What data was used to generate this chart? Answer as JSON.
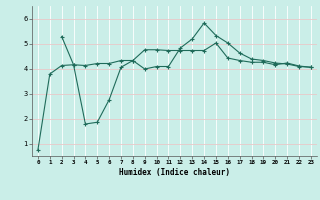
{
  "line1_x": [
    2,
    3,
    4,
    5,
    6,
    7,
    8,
    9,
    10,
    11,
    12,
    13,
    14,
    15,
    16,
    17,
    18,
    19,
    20,
    21,
    22,
    23
  ],
  "line1_y": [
    5.28,
    4.15,
    4.12,
    4.2,
    4.2,
    4.32,
    4.32,
    4.75,
    4.75,
    4.72,
    4.72,
    4.72,
    4.72,
    5.02,
    4.42,
    4.32,
    4.25,
    4.25,
    4.15,
    4.22,
    4.1,
    4.05
  ],
  "line2_x": [
    0,
    1,
    2,
    3,
    4,
    5,
    6,
    7,
    8,
    9,
    10,
    11,
    12,
    13,
    14,
    15,
    16,
    17,
    18,
    19,
    20,
    21,
    22,
    23
  ],
  "line2_y": [
    0.75,
    3.78,
    4.12,
    4.15,
    1.78,
    1.85,
    2.75,
    4.05,
    4.32,
    3.98,
    4.08,
    4.08,
    4.82,
    5.18,
    5.82,
    5.32,
    5.02,
    4.62,
    4.38,
    4.32,
    4.22,
    4.18,
    4.08,
    4.05
  ],
  "line_color": "#1f6b5a",
  "bg_color": "#caeee8",
  "grid_h_color": "#e8c8c8",
  "grid_v_color": "#ffffff",
  "xlabel": "Humidex (Indice chaleur)",
  "xtick_labels": [
    "0",
    "1",
    "2",
    "3",
    "4",
    "5",
    "6",
    "7",
    "8",
    "9",
    "10",
    "11",
    "12",
    "13",
    "14",
    "15",
    "16",
    "17",
    "18",
    "19",
    "20",
    "21",
    "22",
    "23"
  ],
  "ytick_labels": [
    "1",
    "2",
    "3",
    "4",
    "5",
    "6"
  ],
  "ylim": [
    0.5,
    6.5
  ],
  "xlim": [
    -0.5,
    23.5
  ]
}
